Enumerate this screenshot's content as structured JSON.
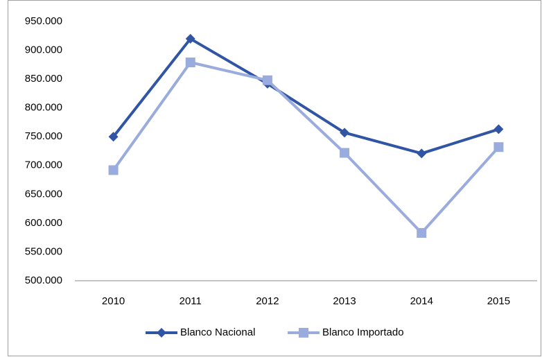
{
  "chart_data": {
    "type": "line",
    "categories": [
      "2010",
      "2011",
      "2012",
      "2013",
      "2014",
      "2015"
    ],
    "series": [
      {
        "name": "Blanco Nacional",
        "color": "#2f55a4",
        "marker": "diamond",
        "values": [
          750000,
          920000,
          842000,
          757000,
          721000,
          763000
        ]
      },
      {
        "name": "Blanco Importado",
        "color": "#9aabdd",
        "marker": "square",
        "values": [
          692000,
          879000,
          848000,
          722000,
          583000,
          732000
        ]
      }
    ],
    "ylim": [
      500000,
      950000
    ],
    "yticks": [
      {
        "value": 500000,
        "label": "500.000"
      },
      {
        "value": 550000,
        "label": "550.000"
      },
      {
        "value": 600000,
        "label": "600.000"
      },
      {
        "value": 650000,
        "label": "650.000"
      },
      {
        "value": 700000,
        "label": "700.000"
      },
      {
        "value": 750000,
        "label": "750.000"
      },
      {
        "value": 800000,
        "label": "800.000"
      },
      {
        "value": 850000,
        "label": "850.000"
      },
      {
        "value": 900000,
        "label": "900.000"
      },
      {
        "value": 950000,
        "label": "950.000"
      }
    ],
    "grid": false,
    "legend": "bottom"
  }
}
